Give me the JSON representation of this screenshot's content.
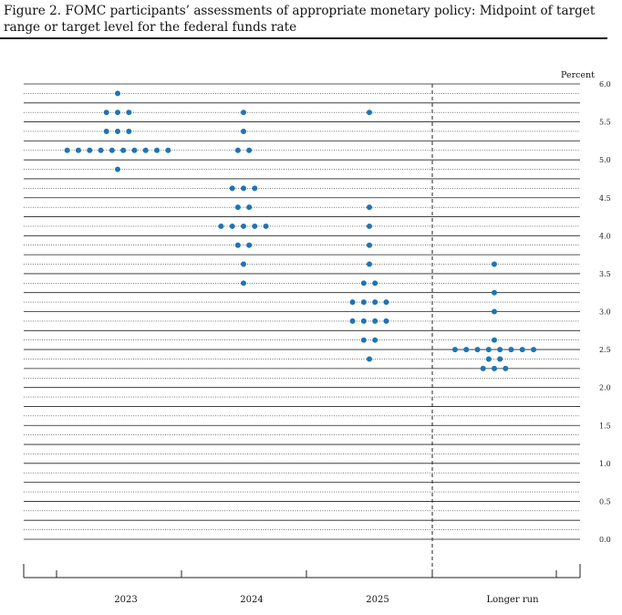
{
  "figure": {
    "caption": "Figure 2. FOMC participants’ assessments of appropriate monetary policy: Midpoint of target range or target level for the federal funds rate"
  },
  "colors": {
    "dot": "#1f74b4",
    "line": "#222222"
  },
  "chart_data": {
    "type": "scatter",
    "ylabel": "Percent",
    "ylim": [
      0,
      6
    ],
    "yticks": [
      "6.0",
      "5.5",
      "5.0",
      "4.5",
      "4.0",
      "3.5",
      "3.0",
      "2.5",
      "2.0",
      "1.5",
      "1.0",
      "0.5",
      "0.0"
    ],
    "categories": [
      "2023",
      "2024",
      "2025",
      "Longer run"
    ],
    "series": [
      {
        "category": "2023",
        "points": [
          {
            "y": 5.875,
            "n": 1
          },
          {
            "y": 5.625,
            "n": 3
          },
          {
            "y": 5.375,
            "n": 3
          },
          {
            "y": 5.125,
            "n": 10
          },
          {
            "y": 4.875,
            "n": 1
          }
        ]
      },
      {
        "category": "2024",
        "points": [
          {
            "y": 5.625,
            "n": 1
          },
          {
            "y": 5.375,
            "n": 1
          },
          {
            "y": 5.125,
            "n": 2
          },
          {
            "y": 4.625,
            "n": 3
          },
          {
            "y": 4.375,
            "n": 2
          },
          {
            "y": 4.125,
            "n": 5
          },
          {
            "y": 3.875,
            "n": 2
          },
          {
            "y": 3.625,
            "n": 1
          },
          {
            "y": 3.375,
            "n": 1
          }
        ]
      },
      {
        "category": "2025",
        "points": [
          {
            "y": 5.625,
            "n": 1
          },
          {
            "y": 4.375,
            "n": 1
          },
          {
            "y": 4.125,
            "n": 1
          },
          {
            "y": 3.875,
            "n": 1
          },
          {
            "y": 3.625,
            "n": 1
          },
          {
            "y": 3.375,
            "n": 2
          },
          {
            "y": 3.125,
            "n": 4
          },
          {
            "y": 2.875,
            "n": 4
          },
          {
            "y": 2.625,
            "n": 2
          },
          {
            "y": 2.375,
            "n": 1
          }
        ]
      },
      {
        "category": "Longer run",
        "points": [
          {
            "y": 3.625,
            "n": 1
          },
          {
            "y": 3.25,
            "n": 1
          },
          {
            "y": 3.0,
            "n": 1
          },
          {
            "y": 2.625,
            "n": 1
          },
          {
            "y": 2.5,
            "n": 8
          },
          {
            "y": 2.375,
            "n": 2
          },
          {
            "y": 2.25,
            "n": 3
          }
        ]
      }
    ]
  }
}
